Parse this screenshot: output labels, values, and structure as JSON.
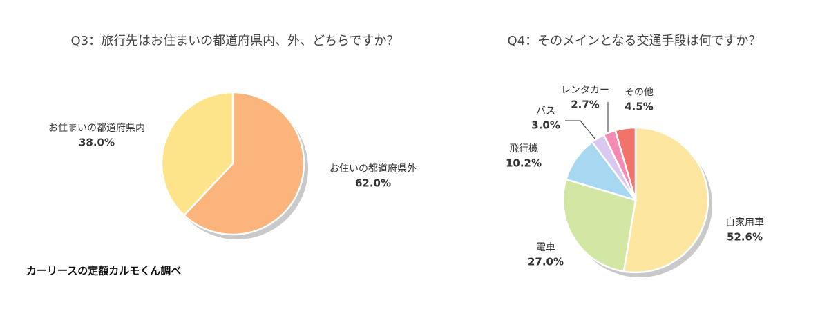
{
  "chart_data": [
    {
      "type": "pie",
      "title": "Q3：旅行先はお住まいの都道府県内、外、どちらですか？",
      "categories": [
        "お住いの都道府県外",
        "お住まいの都道府県内"
      ],
      "values": [
        62.0,
        38.0
      ],
      "value_labels": [
        "62.0%",
        "38.0%"
      ],
      "colors": [
        "#fbb47c",
        "#fde48a"
      ]
    },
    {
      "type": "pie",
      "title": "Q4：そのメインとなる交通手段は何ですか？",
      "categories": [
        "自家用車",
        "電車",
        "飛行機",
        "バス",
        "レンタカー",
        "その他"
      ],
      "values": [
        52.6,
        27.0,
        10.2,
        3.0,
        2.7,
        4.5
      ],
      "value_labels": [
        "52.6%",
        "27.0%",
        "10.2%",
        "3.0%",
        "2.7%",
        "4.5%"
      ],
      "colors": [
        "#fde7a0",
        "#d3e7a4",
        "#a8d7f1",
        "#d9c8ef",
        "#f58bb3",
        "#f2736a"
      ]
    }
  ],
  "source": "カーリースの定額カルモくん調べ"
}
